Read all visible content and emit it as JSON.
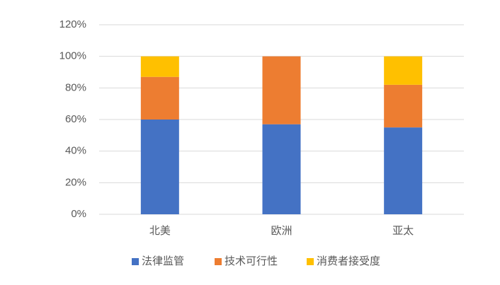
{
  "chart_data": {
    "type": "stacked_bar",
    "categories": [
      "北美",
      "欧洲",
      "亚太"
    ],
    "series": [
      {
        "name": "法律监管",
        "color": "#4472c4",
        "values": [
          60,
          57,
          55
        ]
      },
      {
        "name": "技术可行性",
        "color": "#ed7d31",
        "values": [
          27,
          43,
          27
        ]
      },
      {
        "name": "消费者接受度",
        "color": "#ffc000",
        "values": [
          13,
          0,
          18
        ]
      }
    ],
    "ylim": [
      0,
      120
    ],
    "yticks": [
      {
        "value": 0,
        "label": "0%"
      },
      {
        "value": 20,
        "label": "20%"
      },
      {
        "value": 40,
        "label": "40%"
      },
      {
        "value": 60,
        "label": "60%"
      },
      {
        "value": 80,
        "label": "80%"
      },
      {
        "value": 100,
        "label": "100%"
      },
      {
        "value": 120,
        "label": "120%"
      }
    ],
    "grid": true,
    "legend": "bottom"
  }
}
